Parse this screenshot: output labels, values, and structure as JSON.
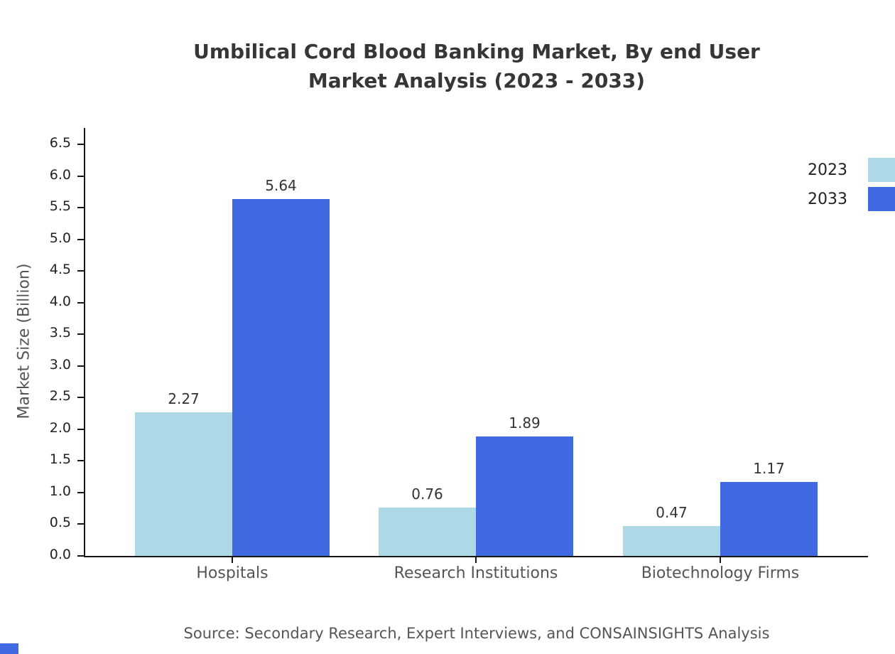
{
  "title": {
    "line1": "Umbilical Cord Blood Banking Market, By end User",
    "line2": "Market Analysis (2023 - 2033)"
  },
  "chart_data": {
    "type": "bar",
    "categories": [
      "Hospitals",
      "Research Institutions",
      "Biotechnology Firms"
    ],
    "series": [
      {
        "name": "2023",
        "color": "#ADD8E6",
        "values": [
          2.27,
          0.76,
          0.47
        ]
      },
      {
        "name": "2033",
        "color": "#4169E1",
        "values": [
          5.64,
          1.89,
          1.17
        ]
      }
    ],
    "xlabel": "",
    "ylabel": "Market Size (Billion)",
    "ylim": [
      0,
      6.5
    ],
    "ytick_step": 0.5,
    "yticks": [
      "0.0",
      "0.5",
      "1.0",
      "1.5",
      "2.0",
      "2.5",
      "3.0",
      "3.5",
      "4.0",
      "4.5",
      "5.0",
      "5.5",
      "6.0",
      "6.5"
    ],
    "grid": false,
    "legend_position": "top-right",
    "value_labels": true
  },
  "source": "Source: Secondary Research, Expert Interviews, and CONSAINSIGHTS Analysis",
  "colors": {
    "series_2023": "#ADD8E6",
    "series_2033": "#4169E1",
    "title_text": "#363636",
    "axis_text": "#222222",
    "category_text": "#555555",
    "source_text": "#555555",
    "axis_line": "#161616",
    "watermark": "#4169E1"
  }
}
